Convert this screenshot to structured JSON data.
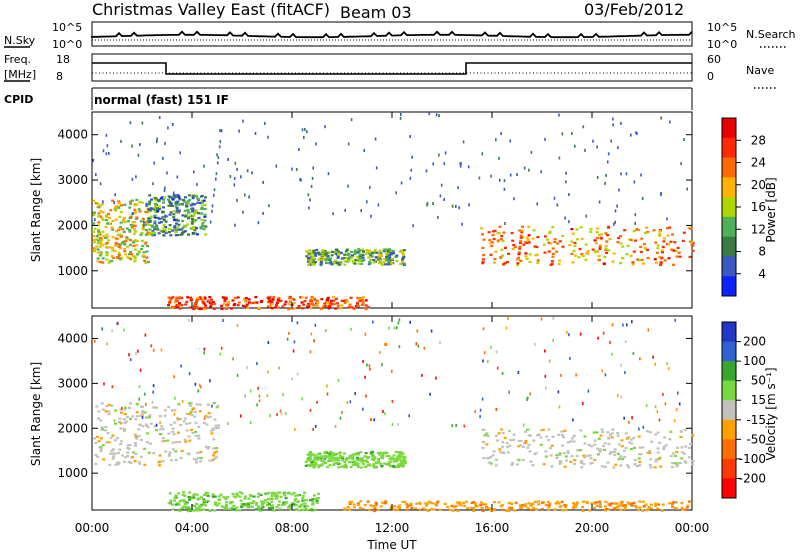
{
  "header": {
    "title": "Christmas Valley East (fitACF)",
    "beam": "Beam 03",
    "date": "03/Feb/2012"
  },
  "noise_panel": {
    "left_label": "N.Sky",
    "left_ticks": [
      "10^5",
      "10^0"
    ],
    "right_label": "N.Search",
    "right_ticks": [
      "10^5",
      "10^0"
    ]
  },
  "freq_panel": {
    "left_label_1": "Freq.",
    "left_label_2": "[MHz]",
    "left_ticks": [
      "18",
      "8"
    ],
    "right_label": "Nave",
    "right_ticks": [
      "60",
      "0"
    ],
    "cpid_label": "CPID",
    "cpid_text": "normal (fast) 151 IF"
  },
  "colors": {
    "power_scale": [
      "#0b24ff",
      "#3b58c4",
      "#3a7a44",
      "#4fb05a",
      "#b0d600",
      "#ffb400",
      "#ff6a00",
      "#ff2a00",
      "#e60000"
    ],
    "velocity_scale": [
      "#2236c8",
      "#2f62d0",
      "#37a72f",
      "#79d83e",
      "#c2c2bc",
      "#ffa000",
      "#ff6e00",
      "#ff3a00",
      "#ff0000"
    ]
  },
  "chart_data": [
    {
      "type": "heatmap",
      "panel": "power",
      "ylabel": "Slant Range [km]",
      "yticks": [
        "1000",
        "2000",
        "3000",
        "4000"
      ],
      "ylim": [
        180,
        4500
      ],
      "xlim_hours": [
        0,
        24
      ],
      "colorbar_label": "Power [dB]",
      "colorbar_ticks": [
        "4",
        "8",
        "12",
        "16",
        "20",
        "24",
        "28"
      ],
      "colorbar_range": [
        0,
        32
      ],
      "features": [
        {
          "start_hour": 0.0,
          "end_hour": 2.2,
          "range_low_km": 1200,
          "range_high_km": 2600,
          "power_db": 18
        },
        {
          "start_hour": 2.2,
          "end_hour": 4.5,
          "range_low_km": 1800,
          "range_high_km": 2700,
          "power_db": 10
        },
        {
          "start_hour": 3.0,
          "end_hour": 11.0,
          "range_low_km": 180,
          "range_high_km": 450,
          "power_db": 26
        },
        {
          "start_hour": 8.5,
          "end_hour": 12.5,
          "range_low_km": 1150,
          "range_high_km": 1500,
          "power_db": 12
        },
        {
          "start_hour": 15.5,
          "end_hour": 24.0,
          "range_low_km": 1150,
          "range_high_km": 2000,
          "power_db": 22
        }
      ]
    },
    {
      "type": "heatmap",
      "panel": "velocity",
      "ylabel": "Slant Range [km]",
      "yticks": [
        "1000",
        "2000",
        "3000",
        "4000"
      ],
      "ylim": [
        180,
        4500
      ],
      "xlim_hours": [
        0,
        24
      ],
      "xlabel": "Time UT",
      "xticks": [
        "00:00",
        "04:00",
        "08:00",
        "12:00",
        "16:00",
        "20:00",
        "00:00"
      ],
      "colorbar_label": "Velocity [m s⁻¹]",
      "colorbar_ticks": [
        "200",
        "100",
        "50",
        "15",
        "-15",
        "-50",
        "-100",
        "-200"
      ],
      "features": [
        {
          "start_hour": 0.0,
          "end_hour": 5.0,
          "range_low_km": 1200,
          "range_high_km": 2600,
          "velocity_ms": 0
        },
        {
          "start_hour": 3.0,
          "end_hour": 9.0,
          "range_low_km": 180,
          "range_high_km": 600,
          "velocity_ms": 40
        },
        {
          "start_hour": 8.5,
          "end_hour": 12.5,
          "range_low_km": 1150,
          "range_high_km": 1500,
          "velocity_ms": 35
        },
        {
          "start_hour": 10.0,
          "end_hour": 24.0,
          "range_low_km": 180,
          "range_high_km": 400,
          "velocity_ms": -40
        },
        {
          "start_hour": 15.5,
          "end_hour": 24.0,
          "range_low_km": 1150,
          "range_high_km": 2000,
          "velocity_ms": 0
        }
      ]
    }
  ]
}
